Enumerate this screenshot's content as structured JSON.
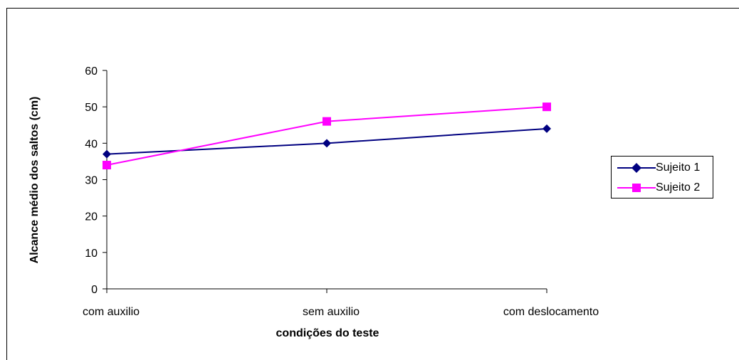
{
  "chart_data": {
    "type": "line",
    "title": "",
    "xlabel": "condições do teste",
    "ylabel": "Alcance médio dos saltos (cm)",
    "categories": [
      "com auxilio",
      "sem auxilio",
      "com deslocamento"
    ],
    "ylim": [
      0,
      60
    ],
    "yticks": [
      0,
      10,
      20,
      30,
      40,
      50,
      60
    ],
    "grid": false,
    "legend_position": "right",
    "series": [
      {
        "name": "Sujeito 1",
        "values": [
          37,
          40,
          44
        ],
        "color": "#000080",
        "marker": "diamond"
      },
      {
        "name": "Sujeito 2",
        "values": [
          34,
          46,
          50
        ],
        "color": "#FF00FF",
        "marker": "square"
      }
    ]
  }
}
